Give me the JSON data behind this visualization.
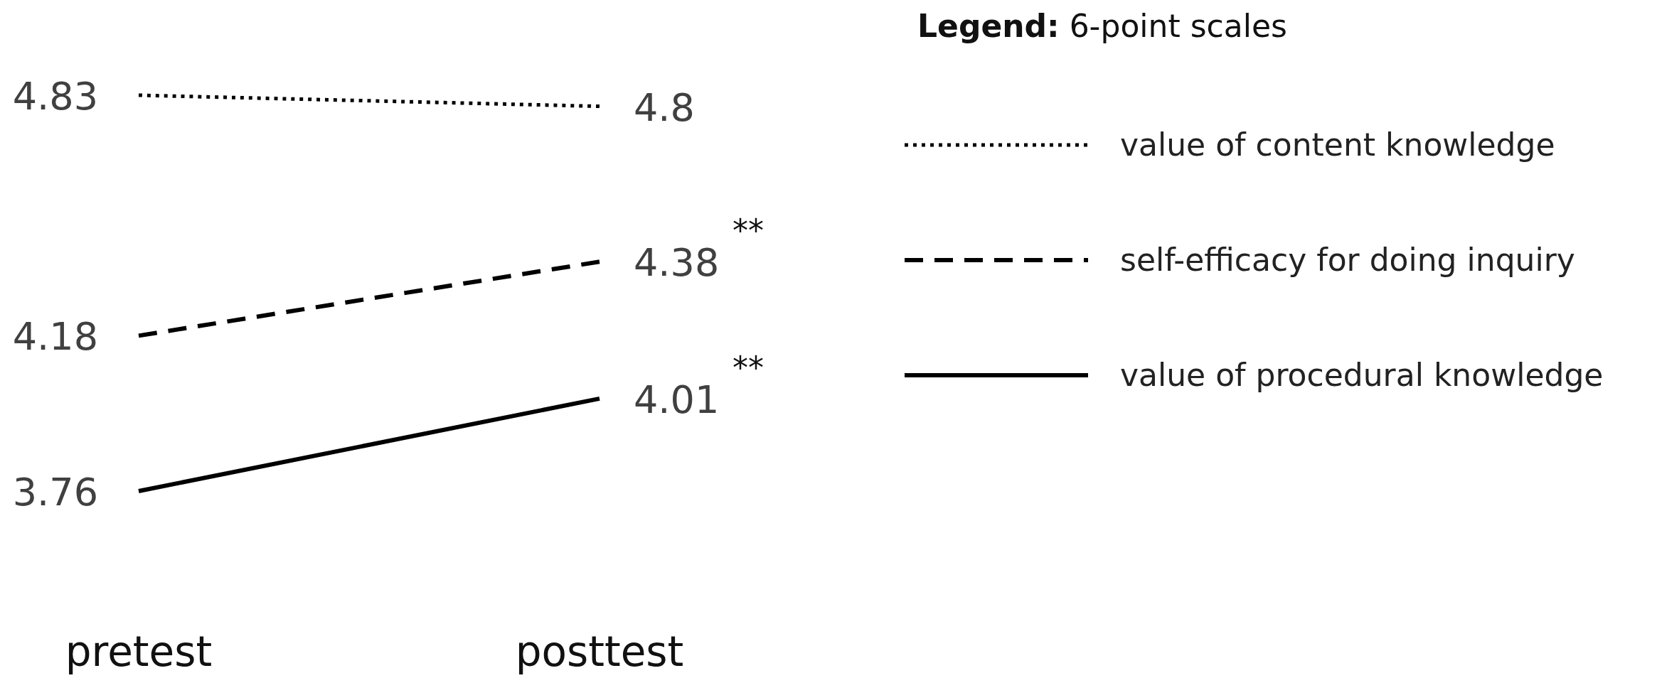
{
  "chart_data": {
    "type": "line",
    "categories": [
      "pretest",
      "posttest"
    ],
    "series": [
      {
        "name": "value of content knowledge",
        "color": "#000000",
        "line_style": "dotted",
        "values": [
          4.83,
          4.8
        ]
      },
      {
        "name": "self-efficacy for doing inquiry",
        "color": "#000000",
        "line_style": "dashed",
        "values": [
          4.18,
          4.38
        ]
      },
      {
        "name": "value of procedural knowledge",
        "color": "#000000",
        "line_style": "solid",
        "values": [
          3.76,
          4.01
        ]
      }
    ],
    "data_labels": true,
    "legend": "top right",
    "legend_title": "Legend: 6-point scales",
    "grid": false,
    "tick_labels": "x",
    "marker": "none",
    "annotations": [
      "**",
      "**"
    ]
  }
}
